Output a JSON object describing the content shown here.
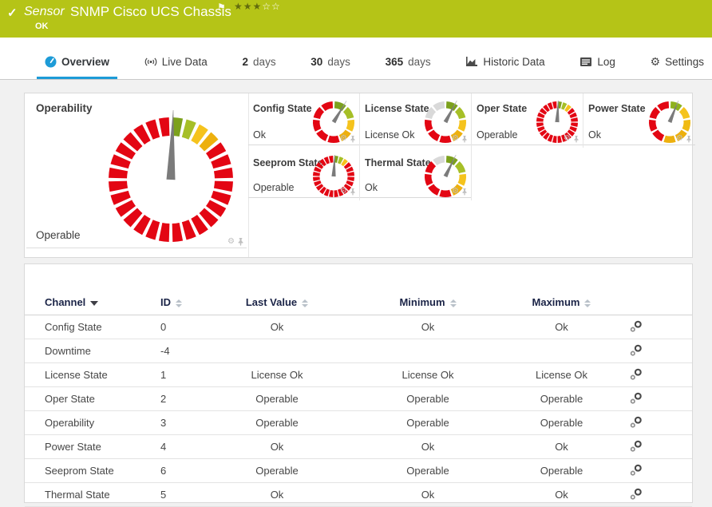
{
  "header": {
    "kind_label": "Sensor",
    "title": "SNMP Cisco UCS Chassis",
    "status": "OK",
    "priority_stars": {
      "filled": 3,
      "total": 5
    },
    "bg_color": "#b5c417"
  },
  "tabs": [
    {
      "icon": "gauge-icon",
      "label": "Overview",
      "active": true
    },
    {
      "icon": "live-data-icon",
      "label": "Live Data"
    },
    {
      "num": "2",
      "label": "days"
    },
    {
      "num": "30",
      "label": "days"
    },
    {
      "num": "365",
      "label": "days"
    },
    {
      "icon": "historic-data-icon",
      "label": "Historic Data"
    },
    {
      "icon": "log-icon",
      "label": "Log"
    },
    {
      "icon": "gear-icon",
      "label": "Settings"
    }
  ],
  "colors": {
    "accent_blue": "#1d9bd7",
    "header_green": "#b5c417",
    "gauge_red": "#e30613",
    "gauge_green_dark": "#7ca11c",
    "gauge_green_light": "#a6bf27",
    "gauge_yellow_light": "#f5c31d",
    "gauge_yellow_dark": "#edb00e",
    "gauge_gray": "#d9d9d9",
    "needle_gray": "#7b7b7b"
  },
  "chart_data": {
    "type": "gauges",
    "large": {
      "name": "Operability",
      "value": "Operable",
      "style": "fine",
      "needle_deg": 2,
      "segments": [
        "#7ca11c",
        "#a6bf27",
        "#f5c31d",
        "#edb00e",
        "#e30613",
        "#e30613",
        "#e30613",
        "#e30613",
        "#e30613",
        "#e30613",
        "#e30613",
        "#e30613",
        "#e30613",
        "#e30613",
        "#e30613",
        "#e30613",
        "#e30613",
        "#e30613",
        "#e30613",
        "#e30613",
        "#e30613",
        "#e30613",
        "#e30613",
        "#e30613",
        "#e30613",
        "#e30613",
        "#e30613",
        "#e30613"
      ]
    },
    "small": [
      {
        "name": "Config State",
        "value": "Ok",
        "style": "coarse",
        "needle_deg": 31,
        "segments": [
          "#7ca11c",
          "#a6bf27",
          "#f5c31d",
          "#edb00e",
          "#e30613",
          "#e30613",
          "#e30613",
          "#e30613",
          "#e30613"
        ]
      },
      {
        "name": "License State",
        "value": "License Ok",
        "style": "coarse",
        "needle_deg": 28,
        "segments": [
          "#7ca11c",
          "#a6bf27",
          "#f5c31d",
          "#edb00e",
          "#e30613",
          "#e30613",
          "#e30613",
          "#d9d9d9",
          "#d9d9d9"
        ]
      },
      {
        "name": "Oper State",
        "value": "Operable",
        "style": "fine",
        "needle_deg": 3,
        "segments": [
          "#7ca11c",
          "#a6bf27",
          "#f5c31d",
          "#e30613",
          "#e30613",
          "#e30613",
          "#e30613",
          "#e30613",
          "#e30613",
          "#e30613",
          "#e30613",
          "#e30613",
          "#e30613",
          "#e30613",
          "#e30613",
          "#e30613",
          "#e30613",
          "#e30613",
          "#e30613",
          "#e30613",
          "#e30613",
          "#e30613",
          "#e30613",
          "#e30613"
        ]
      },
      {
        "name": "Power State",
        "value": "Ok",
        "style": "coarse",
        "needle_deg": 22,
        "segments": [
          "#8fb21e",
          "#f5c31d",
          "#f0bb14",
          "#edb00e",
          "#edb00e",
          "#e30613",
          "#e30613",
          "#e30613",
          "#e30613"
        ]
      },
      {
        "name": "Seeprom State",
        "value": "Operable",
        "style": "fine",
        "needle_deg": 3,
        "segments": [
          "#7ca11c",
          "#a6bf27",
          "#f5c31d",
          "#e30613",
          "#e30613",
          "#e30613",
          "#e30613",
          "#e30613",
          "#e30613",
          "#e30613",
          "#e30613",
          "#e30613",
          "#e30613",
          "#e30613",
          "#e30613",
          "#e30613",
          "#e30613",
          "#e30613",
          "#e30613",
          "#e30613",
          "#e30613",
          "#e30613",
          "#e30613",
          "#e30613"
        ]
      },
      {
        "name": "Thermal State",
        "value": "Ok",
        "style": "coarse",
        "needle_deg": 26,
        "segments": [
          "#7ca11c",
          "#a6bf27",
          "#f5c31d",
          "#edb00e",
          "#e30613",
          "#e30613",
          "#e30613",
          "#e30613",
          "#d9d9d9"
        ]
      }
    ]
  },
  "table": {
    "columns": {
      "channel": "Channel",
      "id": "ID",
      "last_value": "Last Value",
      "minimum": "Minimum",
      "maximum": "Maximum"
    },
    "sorted_by": "Channel",
    "sort_direction": "asc",
    "rows": [
      {
        "channel": "Config State",
        "id": "0",
        "last": "Ok",
        "min": "Ok",
        "max": "Ok"
      },
      {
        "channel": "Downtime",
        "id": "-4",
        "last": "",
        "min": "",
        "max": ""
      },
      {
        "channel": "License State",
        "id": "1",
        "last": "License Ok",
        "min": "License Ok",
        "max": "License Ok"
      },
      {
        "channel": "Oper State",
        "id": "2",
        "last": "Operable",
        "min": "Operable",
        "max": "Operable"
      },
      {
        "channel": "Operability",
        "id": "3",
        "last": "Operable",
        "min": "Operable",
        "max": "Operable"
      },
      {
        "channel": "Power State",
        "id": "4",
        "last": "Ok",
        "min": "Ok",
        "max": "Ok"
      },
      {
        "channel": "Seeprom State",
        "id": "6",
        "last": "Operable",
        "min": "Operable",
        "max": "Operable"
      },
      {
        "channel": "Thermal State",
        "id": "5",
        "last": "Ok",
        "min": "Ok",
        "max": "Ok"
      }
    ]
  }
}
